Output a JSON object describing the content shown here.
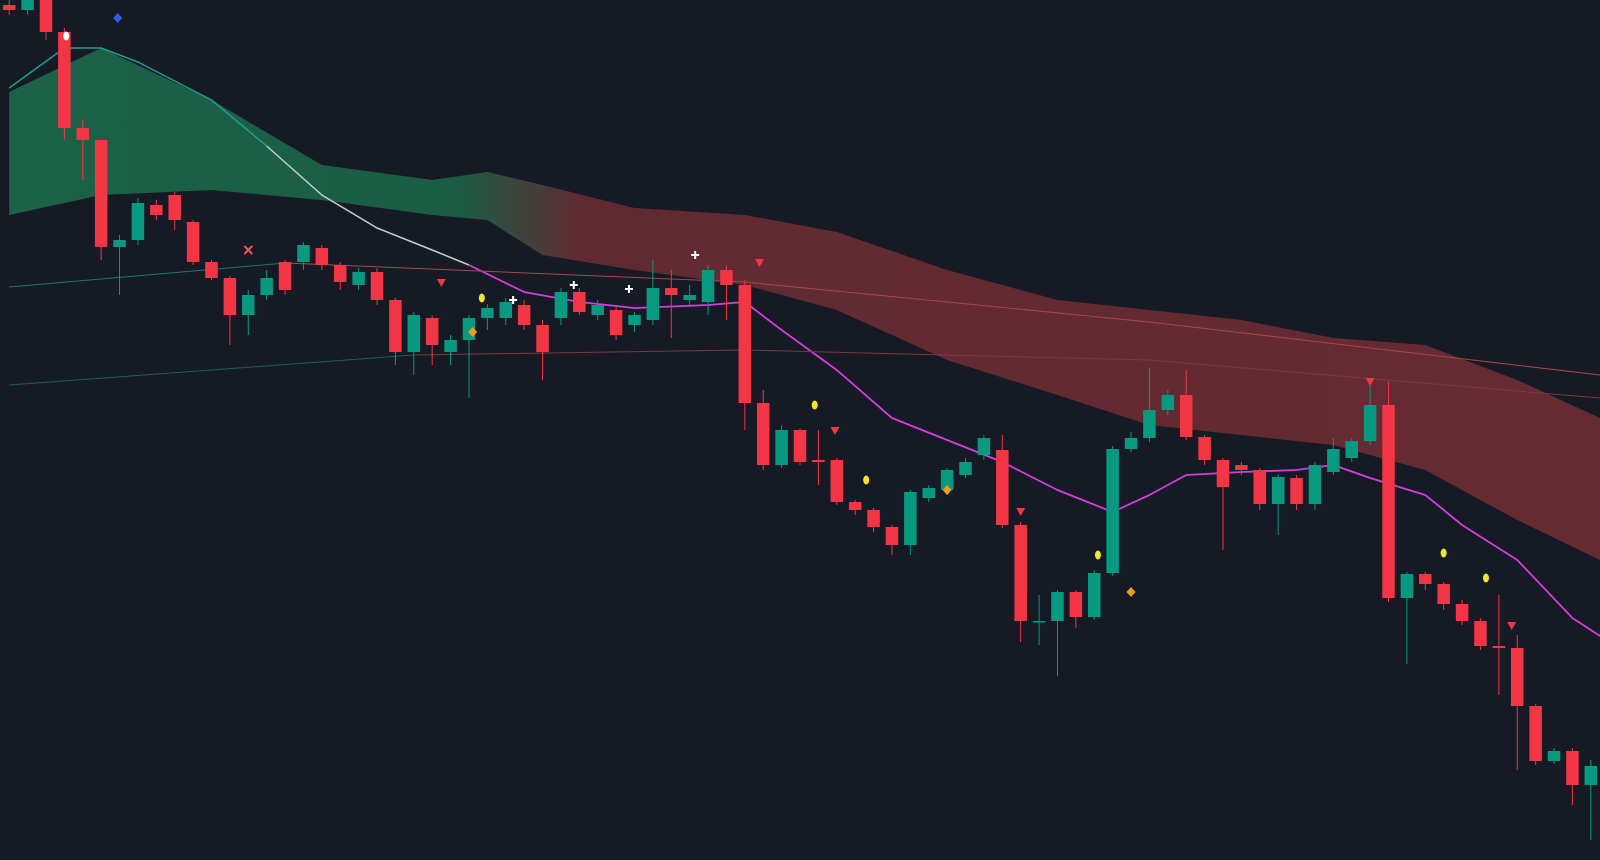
{
  "chart_data": {
    "type": "candlestick",
    "background": "#161a25",
    "up_color": "#089981",
    "down_color": "#f23645",
    "xlim": [
      -0.5,
      86.5
    ],
    "ylim": [
      0,
      860
    ],
    "open": [
      855,
      850,
      860,
      828,
      732,
      720,
      613,
      620,
      655,
      665,
      638,
      598,
      582,
      545,
      565,
      598,
      598,
      612,
      595,
      575,
      588,
      560,
      508,
      542,
      508,
      520,
      542,
      542,
      555,
      535,
      542,
      568,
      545,
      550,
      535,
      540,
      572,
      560,
      558,
      590,
      575,
      457,
      395,
      430,
      400,
      400,
      358,
      350,
      333,
      315,
      362,
      370,
      385,
      405,
      410,
      335,
      239,
      239,
      268,
      243,
      287,
      411,
      422,
      450,
      465,
      423,
      400,
      395,
      390,
      356,
      382,
      356,
      388,
      402,
      419,
      455,
      262,
      286,
      276,
      256,
      239,
      214,
      212,
      154,
      99,
      109,
      75
    ],
    "high": [
      860,
      860,
      860,
      832,
      740,
      720,
      625,
      662,
      660,
      668,
      640,
      600,
      584,
      570,
      590,
      600,
      618,
      615,
      598,
      592,
      592,
      562,
      548,
      545,
      525,
      545,
      556,
      562,
      560,
      540,
      572,
      572,
      560,
      555,
      548,
      600,
      590,
      575,
      595,
      595,
      580,
      470,
      435,
      432,
      430,
      402,
      360,
      352,
      335,
      370,
      375,
      392,
      402,
      425,
      425,
      338,
      265,
      270,
      270,
      290,
      414,
      428,
      492,
      470,
      490,
      425,
      402,
      398,
      392,
      386,
      385,
      398,
      422,
      422,
      480,
      478,
      288,
      288,
      278,
      260,
      242,
      265,
      225,
      156,
      112,
      112,
      100
    ],
    "low": [
      845,
      845,
      820,
      720,
      680,
      600,
      565,
      615,
      640,
      630,
      595,
      580,
      515,
      525,
      560,
      565,
      590,
      590,
      570,
      570,
      555,
      495,
      485,
      495,
      495,
      462,
      530,
      535,
      530,
      480,
      535,
      545,
      540,
      520,
      528,
      535,
      522,
      555,
      545,
      540,
      430,
      390,
      392,
      395,
      375,
      355,
      345,
      328,
      305,
      305,
      358,
      365,
      382,
      400,
      332,
      218,
      215,
      184,
      232,
      240,
      284,
      408,
      418,
      445,
      420,
      395,
      310,
      385,
      350,
      325,
      350,
      350,
      385,
      398,
      415,
      258,
      196,
      270,
      250,
      235,
      210,
      165,
      90,
      95,
      96,
      55,
      20
    ],
    "close": [
      850,
      860,
      828,
      732,
      720,
      613,
      620,
      657,
      645,
      640,
      598,
      582,
      545,
      565,
      582,
      570,
      615,
      595,
      578,
      588,
      560,
      508,
      545,
      515,
      520,
      542,
      552,
      558,
      535,
      508,
      568,
      548,
      555,
      525,
      545,
      572,
      565,
      565,
      590,
      575,
      457,
      395,
      430,
      398,
      398,
      358,
      350,
      333,
      315,
      368,
      372,
      390,
      398,
      422,
      335,
      239,
      239,
      268,
      243,
      287,
      411,
      422,
      450,
      465,
      423,
      400,
      373,
      390,
      356,
      383,
      356,
      395,
      411,
      419,
      455,
      262,
      286,
      276,
      256,
      239,
      214,
      212,
      154,
      99,
      109,
      75,
      94
    ],
    "band": {
      "colors": [
        "#1d7a52",
        "#7a2f36"
      ],
      "x": [
        0,
        5,
        11,
        17,
        23,
        26,
        29,
        34,
        40,
        45,
        51,
        57,
        62,
        67,
        72,
        77,
        82,
        86.5
      ],
      "upper": [
        768,
        812,
        760,
        695,
        680,
        688,
        675,
        652,
        645,
        628,
        590,
        560,
        550,
        540,
        522,
        515,
        480,
        442
      ],
      "lower": [
        645,
        665,
        670,
        660,
        645,
        640,
        605,
        590,
        575,
        550,
        500,
        465,
        435,
        425,
        415,
        390,
        340,
        300
      ]
    },
    "lines": [
      {
        "color": "#1f9e8a",
        "width": 1.5,
        "x": [
          0,
          3,
          5,
          7,
          11,
          14
        ],
        "values": [
          772,
          812,
          812,
          798,
          760,
          714
        ]
      },
      {
        "color": "#c9cdd6",
        "width": 1.5,
        "x": [
          14,
          17,
          20,
          23,
          25
        ],
        "values": [
          714,
          665,
          632,
          610,
          595
        ]
      },
      {
        "color": "#d63ce0",
        "width": 1.8,
        "x": [
          25,
          28,
          31,
          34,
          38,
          40,
          42,
          45,
          48,
          51,
          54,
          57,
          60,
          62,
          64,
          67,
          70,
          72,
          74,
          77,
          79,
          82,
          85,
          86.5
        ],
        "values": [
          595,
          568,
          558,
          552,
          555,
          558,
          530,
          490,
          442,
          420,
          398,
          370,
          348,
          365,
          385,
          388,
          390,
          395,
          382,
          365,
          335,
          300,
          242,
          224
        ]
      },
      {
        "color": "#1a7d66",
        "width": 1,
        "x": [
          0,
          15
        ],
        "values": [
          573,
          597
        ]
      },
      {
        "color": "#a8474c",
        "width": 1,
        "x": [
          15,
          40,
          62,
          86.5
        ],
        "values": [
          597,
          578,
          538,
          485
        ]
      },
      {
        "color": "#1c5f52",
        "width": 1,
        "x": [
          0,
          22
        ],
        "values": [
          475,
          505
        ]
      },
      {
        "color": "#7a3a40",
        "width": 1,
        "x": [
          22,
          40,
          62,
          86.5
        ],
        "values": [
          505,
          510,
          500,
          462
        ]
      }
    ],
    "markers": [
      {
        "shape": "triangle",
        "color": "#f23645",
        "index": 23.5,
        "value": 577
      },
      {
        "shape": "triangle",
        "color": "#f23645",
        "index": 40.8,
        "value": 597
      },
      {
        "shape": "triangle",
        "color": "#f23645",
        "index": 44.9,
        "value": 429
      },
      {
        "shape": "triangle",
        "color": "#f23645",
        "index": 55,
        "value": 348
      },
      {
        "shape": "triangle",
        "color": "#f23645",
        "index": 74,
        "value": 478
      },
      {
        "shape": "triangle",
        "color": "#f23645",
        "index": 81.7,
        "value": 234
      },
      {
        "shape": "dot",
        "color": "#f5e52f",
        "index": 25.7,
        "value": 562
      },
      {
        "shape": "dot",
        "color": "#f5e52f",
        "index": 43.8,
        "value": 455
      },
      {
        "shape": "dot",
        "color": "#f5e52f",
        "index": 46.6,
        "value": 380
      },
      {
        "shape": "dot",
        "color": "#f5e52f",
        "index": 59.2,
        "value": 305
      },
      {
        "shape": "dot",
        "color": "#f5e52f",
        "index": 78,
        "value": 307
      },
      {
        "shape": "dot",
        "color": "#f5e52f",
        "index": 80.3,
        "value": 282
      },
      {
        "shape": "dot",
        "color": "#ffffff",
        "index": 3.1,
        "value": 824
      },
      {
        "shape": "diamond",
        "color": "#f59a1b",
        "index": 25.2,
        "value": 528
      },
      {
        "shape": "diamond",
        "color": "#f59a1b",
        "index": 51,
        "value": 370
      },
      {
        "shape": "diamond",
        "color": "#f59a1b",
        "index": 61,
        "value": 268
      },
      {
        "shape": "diamond",
        "color": "#2f5bea",
        "index": 5.9,
        "value": 842
      },
      {
        "shape": "cross",
        "color": "#ffffff",
        "index": 27.4,
        "value": 560
      },
      {
        "shape": "cross",
        "color": "#ffffff",
        "index": 30.7,
        "value": 575
      },
      {
        "shape": "cross",
        "color": "#ffffff",
        "index": 33.7,
        "value": 571
      },
      {
        "shape": "cross",
        "color": "#ffffff",
        "index": 37.3,
        "value": 605
      },
      {
        "shape": "x",
        "color": "#f2545f",
        "index": 13,
        "value": 610
      }
    ]
  }
}
